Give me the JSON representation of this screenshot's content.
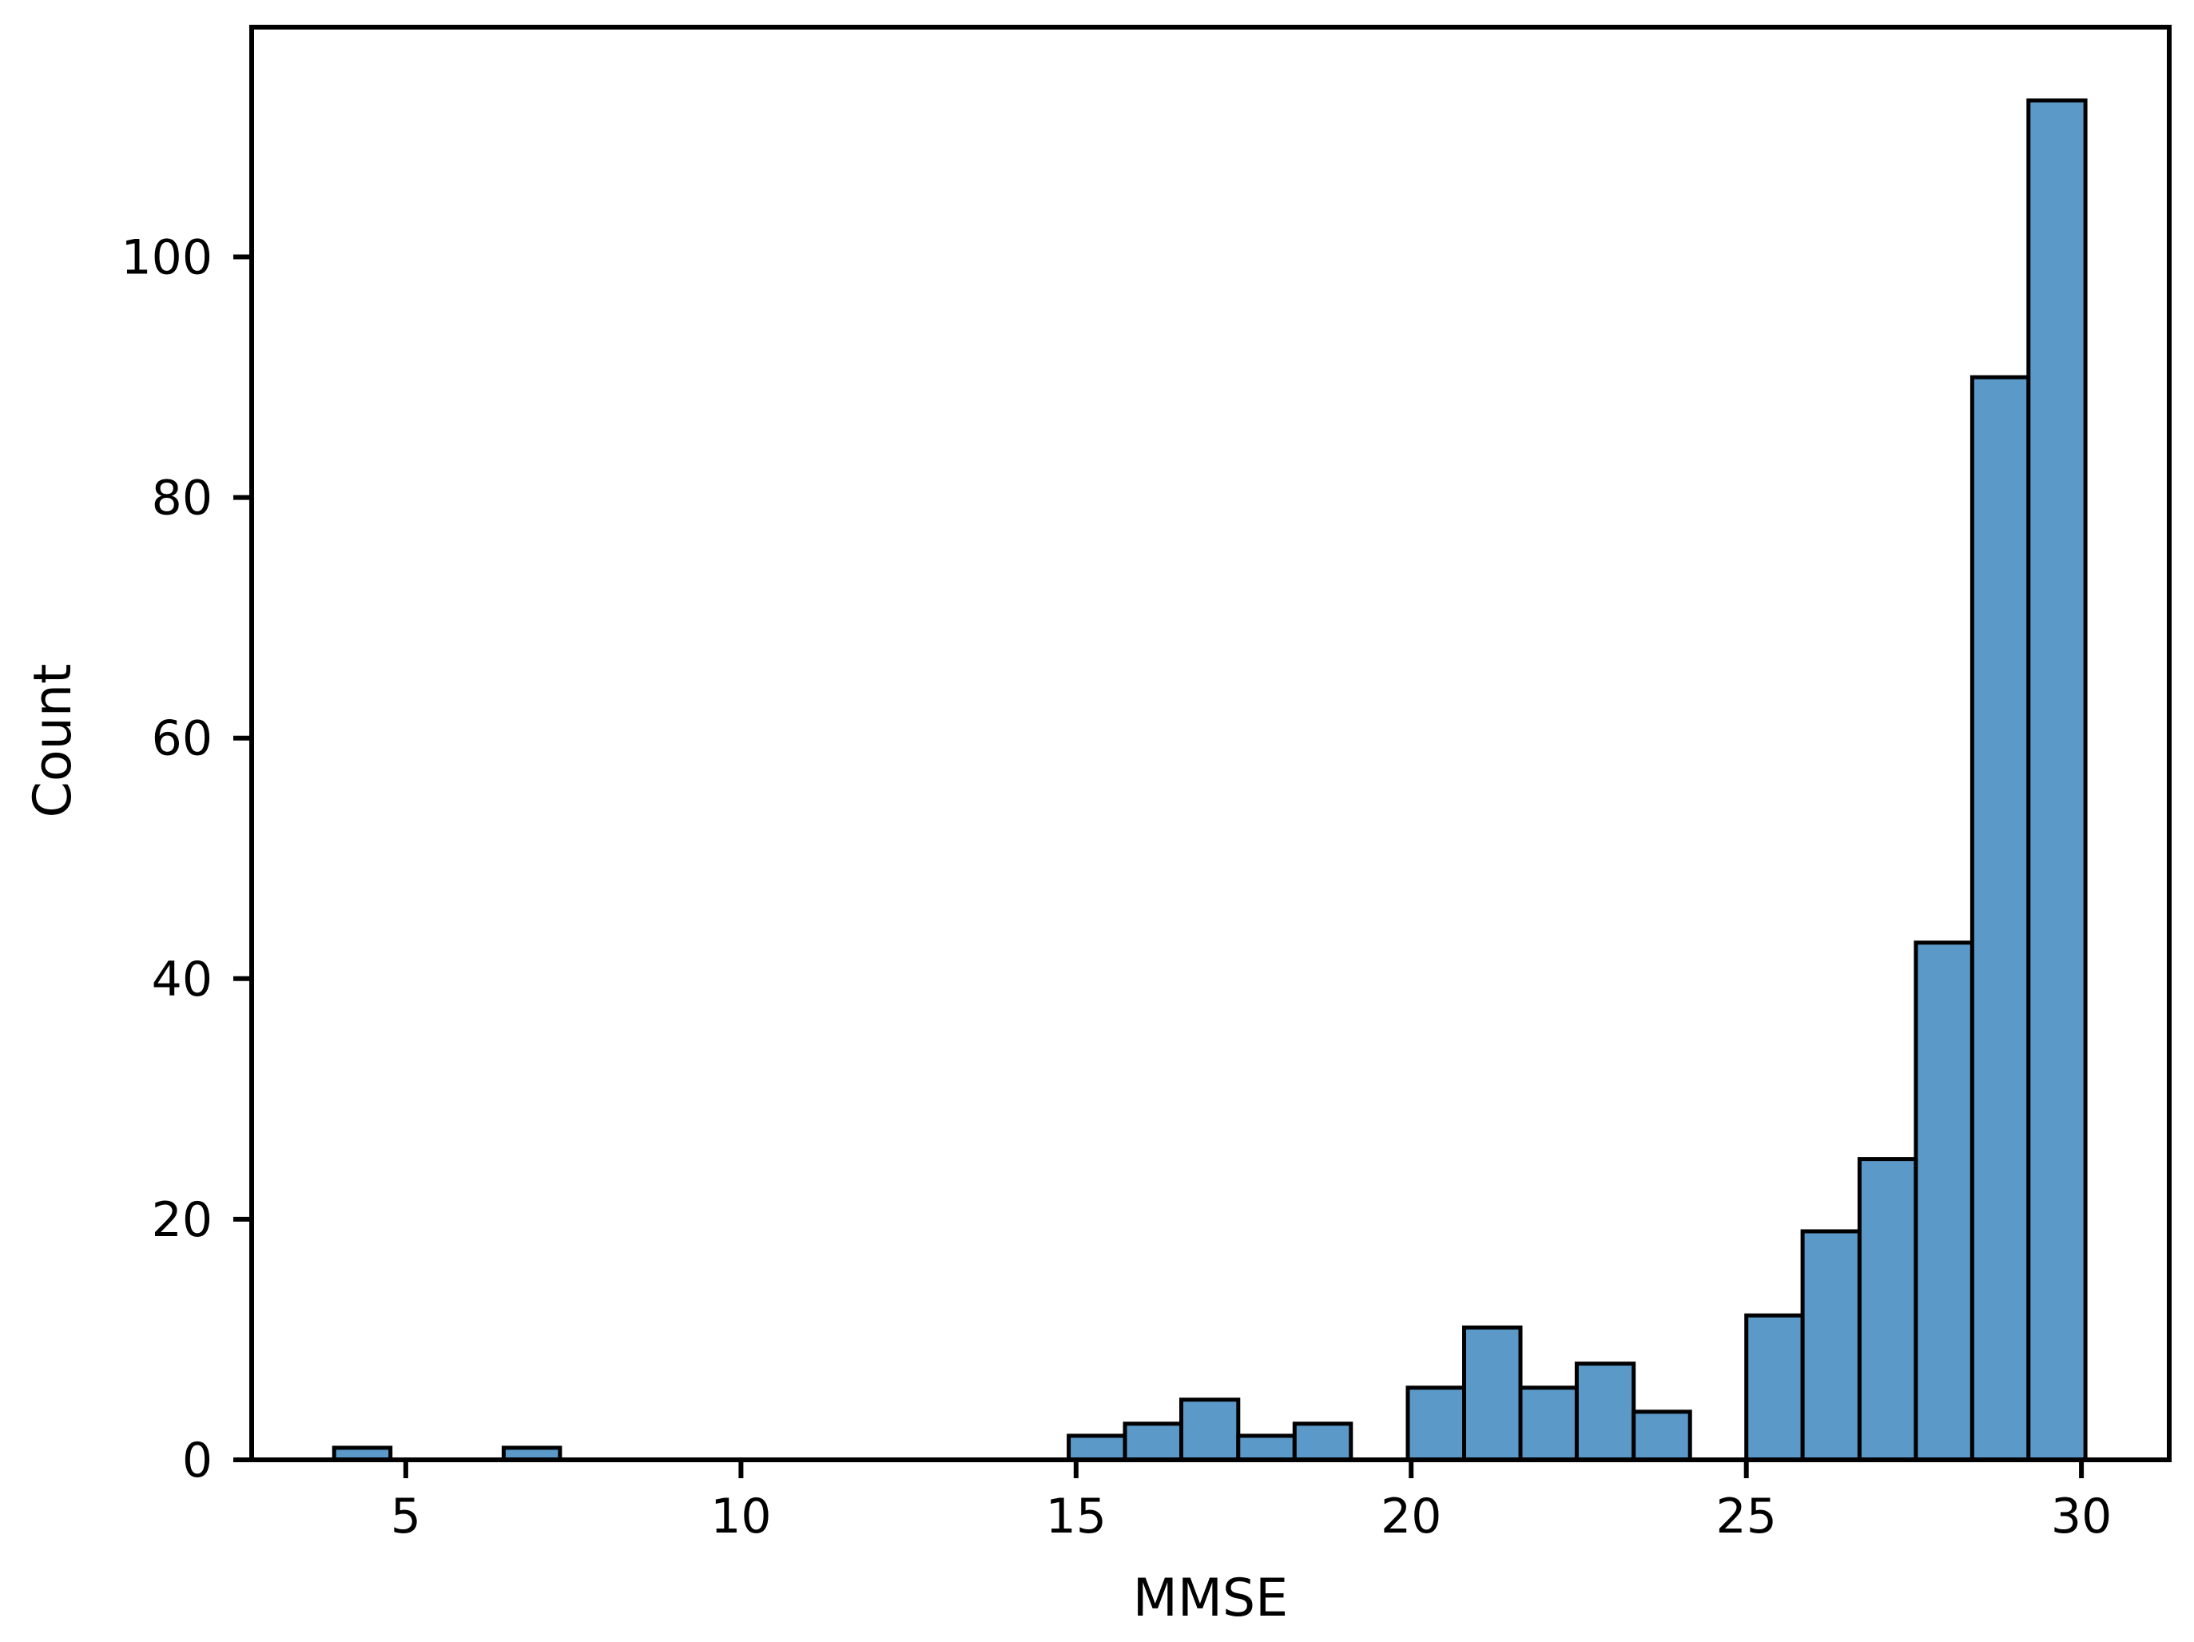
{
  "figure": {
    "background": "#ffffff"
  },
  "chart_data": {
    "type": "bar",
    "subtype": "histogram",
    "title": "",
    "xlabel": "MMSE",
    "ylabel": "Count",
    "xlim": [
      2.7,
      31.31
    ],
    "ylim": [
      0,
      119.1
    ],
    "x_ticks": [
      5,
      10,
      15,
      20,
      25,
      30
    ],
    "y_ticks": [
      0,
      20,
      40,
      60,
      80,
      100
    ],
    "grid": false,
    "bar_fill": "#5a99c8",
    "bar_edge": "#000000",
    "axis_color": "#000000",
    "bins": [
      {
        "x0": 3.93,
        "x1": 4.77,
        "count": 1
      },
      {
        "x0": 6.46,
        "x1": 7.3,
        "count": 1
      },
      {
        "x0": 14.89,
        "x1": 15.73,
        "count": 2
      },
      {
        "x0": 15.73,
        "x1": 16.57,
        "count": 3
      },
      {
        "x0": 16.57,
        "x1": 17.42,
        "count": 5
      },
      {
        "x0": 17.42,
        "x1": 18.26,
        "count": 2
      },
      {
        "x0": 18.26,
        "x1": 19.1,
        "count": 3
      },
      {
        "x0": 19.95,
        "x1": 20.79,
        "count": 6
      },
      {
        "x0": 20.79,
        "x1": 21.63,
        "count": 11
      },
      {
        "x0": 21.63,
        "x1": 22.47,
        "count": 6
      },
      {
        "x0": 22.47,
        "x1": 23.32,
        "count": 8
      },
      {
        "x0": 23.32,
        "x1": 24.16,
        "count": 4
      },
      {
        "x0": 25.0,
        "x1": 25.84,
        "count": 12
      },
      {
        "x0": 25.84,
        "x1": 26.69,
        "count": 19
      },
      {
        "x0": 26.69,
        "x1": 27.53,
        "count": 25
      },
      {
        "x0": 27.53,
        "x1": 28.37,
        "count": 43
      },
      {
        "x0": 28.37,
        "x1": 29.21,
        "count": 90
      },
      {
        "x0": 29.21,
        "x1": 30.06,
        "count": 113
      }
    ]
  }
}
